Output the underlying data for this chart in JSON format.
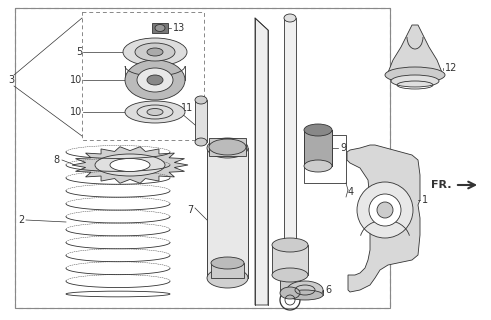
{
  "background_color": "#ffffff",
  "line_color": "#333333",
  "fr_label": "FR.",
  "font_size_label": 7,
  "font_size_fr": 8,
  "fig_w": 4.91,
  "fig_h": 3.2,
  "dpi": 100
}
